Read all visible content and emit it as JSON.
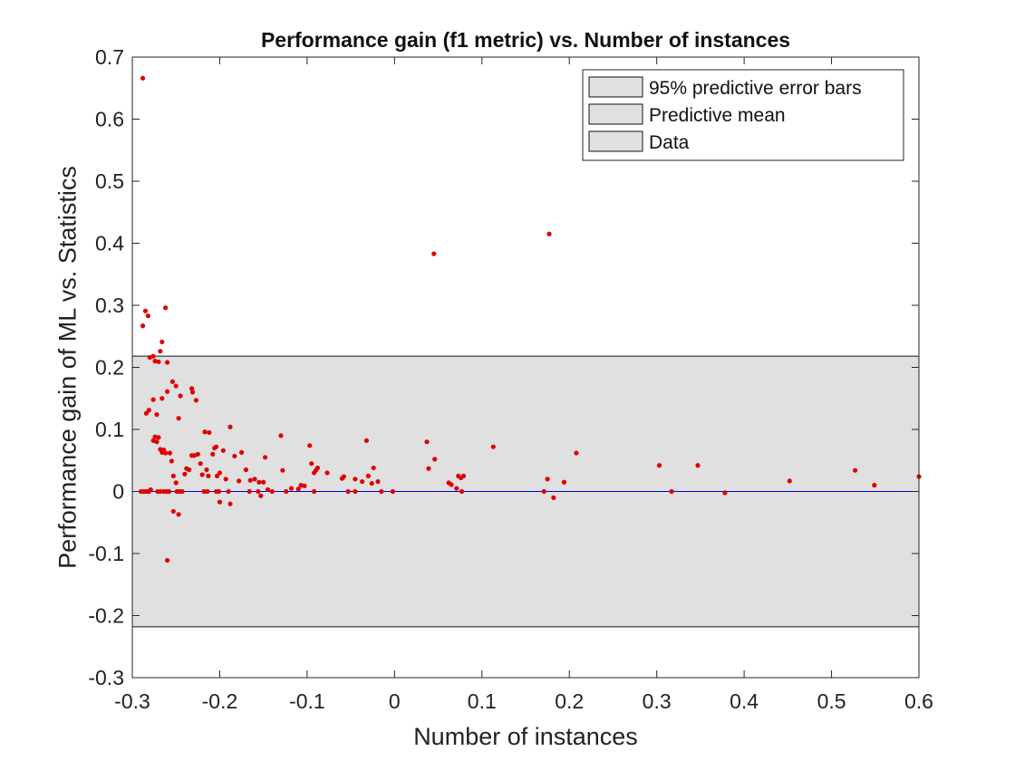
{
  "chart_data": {
    "type": "scatter",
    "title": "Performance gain (f1 metric) vs. Number of instances",
    "xlabel": "Number of instances",
    "ylabel": "Performance gain of ML vs. Statistics",
    "xlim": [
      -0.3,
      0.6
    ],
    "ylim": [
      -0.3,
      0.7
    ],
    "xticks": [
      -0.3,
      -0.2,
      -0.1,
      0,
      0.1,
      0.2,
      0.3,
      0.4,
      0.5,
      0.6
    ],
    "xtick_labels": [
      "-0.3",
      "-0.2",
      "-0.1",
      "0",
      "0.1",
      "0.2",
      "0.3",
      "0.4",
      "0.5",
      "0.6"
    ],
    "yticks": [
      -0.3,
      -0.2,
      -0.1,
      0,
      0.1,
      0.2,
      0.3,
      0.4,
      0.5,
      0.6,
      0.7
    ],
    "ytick_labels": [
      "-0.3",
      "-0.2",
      "-0.1",
      "0",
      "0.1",
      "0.2",
      "0.3",
      "0.4",
      "0.5",
      "0.6",
      "0.7"
    ],
    "grid": false,
    "legend_position": "top-right",
    "legend": [
      "95% predictive error bars",
      "Predictive mean",
      "Data"
    ],
    "error_band": {
      "name": "95% predictive error bars",
      "lower": -0.218,
      "upper": 0.218,
      "color": "#e0e0e0"
    },
    "mean_line": {
      "name": "Predictive mean",
      "y": 0,
      "color": "#0000cc"
    },
    "series": [
      {
        "name": "Data",
        "color": "#e00000",
        "points": [
          [
            -0.288,
            0.666
          ],
          [
            -0.288,
            0.267
          ],
          [
            -0.285,
            0.291
          ],
          [
            -0.282,
            0.283
          ],
          [
            -0.28,
            0.216
          ],
          [
            -0.276,
            0.218
          ],
          [
            -0.274,
            0.21
          ],
          [
            -0.27,
            0.209
          ],
          [
            -0.268,
            0.226
          ],
          [
            -0.266,
            0.241
          ],
          [
            -0.262,
            0.296
          ],
          [
            -0.26,
            0.208
          ],
          [
            -0.284,
            0.126
          ],
          [
            -0.281,
            0.131
          ],
          [
            -0.276,
            0.148
          ],
          [
            -0.272,
            0.124
          ],
          [
            -0.266,
            0.15
          ],
          [
            -0.26,
            0.161
          ],
          [
            -0.254,
            0.177
          ],
          [
            -0.25,
            0.17
          ],
          [
            -0.245,
            0.154
          ],
          [
            -0.232,
            0.166
          ],
          [
            -0.231,
            0.16
          ],
          [
            -0.227,
            0.147
          ],
          [
            -0.247,
            0.118
          ],
          [
            -0.276,
            0.082
          ],
          [
            -0.274,
            0.088
          ],
          [
            -0.272,
            0.08
          ],
          [
            -0.27,
            0.087
          ],
          [
            -0.268,
            0.068
          ],
          [
            -0.266,
            0.063
          ],
          [
            -0.264,
            0.067
          ],
          [
            -0.262,
            0.062
          ],
          [
            -0.257,
            0.062
          ],
          [
            -0.255,
            0.049
          ],
          [
            -0.253,
            0.025
          ],
          [
            -0.25,
            0.014
          ],
          [
            -0.24,
            0.028
          ],
          [
            -0.238,
            0.037
          ],
          [
            -0.235,
            0.035
          ],
          [
            -0.232,
            0.058
          ],
          [
            -0.229,
            0.058
          ],
          [
            -0.225,
            0.06
          ],
          [
            -0.222,
            0.045
          ],
          [
            -0.22,
            0.027
          ],
          [
            -0.217,
            0.096
          ],
          [
            -0.215,
            0.035
          ],
          [
            -0.213,
            0.025
          ],
          [
            -0.212,
            0.095
          ],
          [
            -0.208,
            0.06
          ],
          [
            -0.206,
            0.07
          ],
          [
            -0.204,
            0.072
          ],
          [
            -0.203,
            0.025
          ],
          [
            -0.2,
            0.03
          ],
          [
            -0.196,
            0.066
          ],
          [
            -0.193,
            0.02
          ],
          [
            -0.188,
            0.104
          ],
          [
            -0.183,
            0.057
          ],
          [
            -0.178,
            0.017
          ],
          [
            -0.175,
            0.063
          ],
          [
            -0.17,
            0.035
          ],
          [
            -0.165,
            0.018
          ],
          [
            -0.16,
            0.02
          ],
          [
            -0.155,
            0.015
          ],
          [
            -0.15,
            0.015
          ],
          [
            -0.148,
            0.055
          ],
          [
            -0.145,
            0.003
          ],
          [
            -0.13,
            0.09
          ],
          [
            -0.128,
            0.034
          ],
          [
            -0.118,
            0.005
          ],
          [
            -0.11,
            0.004
          ],
          [
            -0.107,
            0.01
          ],
          [
            -0.103,
            0.009
          ],
          [
            -0.097,
            0.074
          ],
          [
            -0.095,
            0.045
          ],
          [
            -0.092,
            0.03
          ],
          [
            -0.09,
            0.034
          ],
          [
            -0.088,
            0.038
          ],
          [
            -0.077,
            0.03
          ],
          [
            -0.06,
            0.021
          ],
          [
            -0.058,
            0.024
          ],
          [
            -0.045,
            0.02
          ],
          [
            -0.037,
            0.016
          ],
          [
            -0.032,
            0.082
          ],
          [
            -0.03,
            0.025
          ],
          [
            -0.026,
            0.013
          ],
          [
            -0.024,
            0.038
          ],
          [
            -0.019,
            0.016
          ],
          [
            0.037,
            0.08
          ],
          [
            0.039,
            0.037
          ],
          [
            0.045,
            0.383
          ],
          [
            0.046,
            0.052
          ],
          [
            0.062,
            0.014
          ],
          [
            0.065,
            0.011
          ],
          [
            0.071,
            0.005
          ],
          [
            0.073,
            0.025
          ],
          [
            0.076,
            0.022
          ],
          [
            0.079,
            0.025
          ],
          [
            0.113,
            0.072
          ],
          [
            0.175,
            0.02
          ],
          [
            0.177,
            0.415
          ],
          [
            0.182,
            -0.01
          ],
          [
            0.194,
            0.015
          ],
          [
            0.208,
            0.062
          ],
          [
            0.303,
            0.042
          ],
          [
            0.347,
            0.042
          ],
          [
            0.452,
            0.017
          ],
          [
            0.527,
            0.034
          ],
          [
            0.549,
            0.01
          ],
          [
            0.6,
            0.024
          ],
          [
            -0.29,
            0.0
          ],
          [
            -0.287,
            0.0
          ],
          [
            -0.284,
            0.0
          ],
          [
            -0.281,
            0.0
          ],
          [
            -0.279,
            0.003
          ],
          [
            -0.271,
            0.0
          ],
          [
            -0.268,
            0.0
          ],
          [
            -0.264,
            0.0
          ],
          [
            -0.261,
            0.0
          ],
          [
            -0.258,
            0.0
          ],
          [
            -0.249,
            0.0
          ],
          [
            -0.246,
            0.0
          ],
          [
            -0.243,
            0.0
          ],
          [
            -0.218,
            0.0
          ],
          [
            -0.214,
            0.0
          ],
          [
            -0.204,
            0.0
          ],
          [
            -0.201,
            0.0
          ],
          [
            -0.19,
            0.0
          ],
          [
            -0.166,
            0.0
          ],
          [
            -0.156,
            0.0
          ],
          [
            -0.153,
            -0.007
          ],
          [
            -0.14,
            0.0
          ],
          [
            -0.124,
            0.0
          ],
          [
            -0.092,
            0.0
          ],
          [
            -0.053,
            0.0
          ],
          [
            -0.045,
            0.0
          ],
          [
            -0.015,
            0.0
          ],
          [
            -0.002,
            0.0
          ],
          [
            0.077,
            0.0
          ],
          [
            0.171,
            0.0
          ],
          [
            0.317,
            0.0
          ],
          [
            0.378,
            -0.002
          ],
          [
            -0.253,
            -0.032
          ],
          [
            -0.247,
            -0.037
          ],
          [
            -0.26,
            -0.111
          ],
          [
            -0.2,
            -0.017
          ],
          [
            -0.188,
            -0.02
          ]
        ]
      }
    ]
  }
}
